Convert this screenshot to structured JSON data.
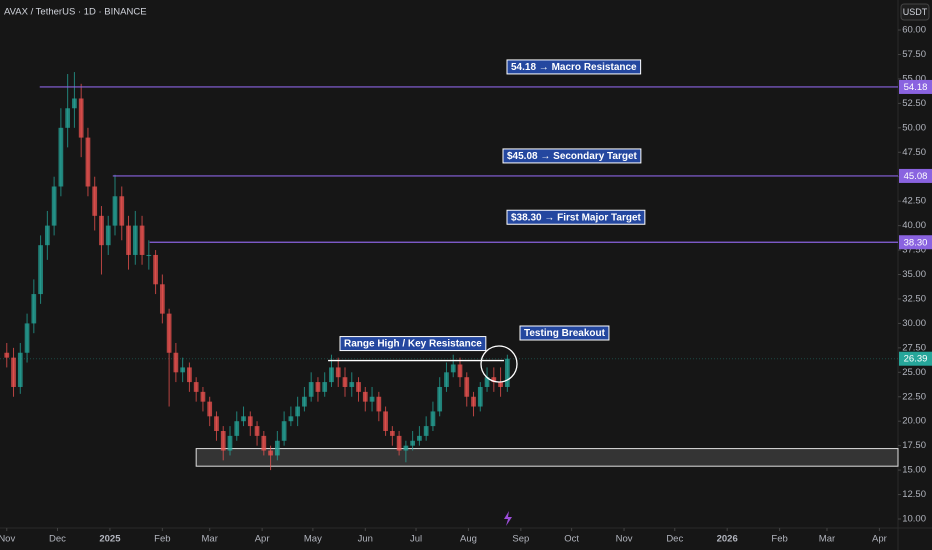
{
  "chart_data": {
    "type": "candlestick",
    "title": "AVAX / TetherUS · 1D · BINANCE",
    "quote_currency": "USDT",
    "up_color": "#26a69a",
    "down_color": "#ef5350",
    "level_color": "#8a63e0",
    "x": [
      0,
      4,
      8,
      12,
      16,
      20,
      24,
      28,
      32,
      36,
      40,
      44,
      48,
      52,
      56,
      60,
      64,
      68,
      72,
      76,
      80,
      84,
      88,
      92,
      96,
      100,
      104,
      108,
      112,
      116,
      120,
      124,
      128,
      132,
      136,
      140,
      144,
      148,
      152,
      156,
      160,
      164,
      168,
      172,
      176,
      180,
      184,
      188,
      192,
      196,
      200,
      204,
      208,
      212,
      216,
      220,
      224,
      228,
      232,
      236,
      240,
      244,
      248,
      252,
      256,
      260,
      264,
      268,
      272,
      276,
      280,
      284,
      288,
      292,
      296
    ],
    "open": [
      27,
      26.5,
      23.5,
      27,
      30,
      33,
      38,
      40,
      44,
      50,
      52,
      53,
      49,
      44,
      41,
      38,
      40,
      43,
      40,
      37,
      40,
      37,
      37,
      34,
      31,
      27,
      25,
      25.5,
      24,
      23,
      22,
      20.5,
      19,
      17,
      18.5,
      20,
      20.5,
      19.5,
      18.5,
      17,
      16.5,
      18,
      20,
      20.5,
      21.5,
      22.5,
      24,
      23,
      24,
      25.5,
      24.5,
      23.5,
      24,
      23,
      22,
      22.5,
      21,
      19,
      18.5,
      17,
      17.5,
      18,
      18.5,
      19.5,
      21,
      23.5,
      25,
      25.8,
      24.5,
      22.5,
      21.5,
      23.5,
      24.5,
      24,
      23.5
    ],
    "high": [
      28,
      27.5,
      28,
      31,
      34.5,
      39,
      41.5,
      45,
      52,
      55.5,
      55.7,
      54.5,
      50,
      45,
      42,
      41,
      45.2,
      44,
      41,
      41.5,
      41,
      38.5,
      37.5,
      35,
      31.5,
      28,
      26.5,
      26,
      24.5,
      23.5,
      22.5,
      21,
      19.5,
      19.5,
      21,
      21.5,
      21,
      20,
      19,
      17.5,
      19,
      21,
      21.5,
      22.5,
      23.5,
      25,
      24.5,
      25,
      26.8,
      26.5,
      25.5,
      25,
      24.5,
      23.5,
      23.5,
      23,
      21.5,
      19.5,
      19,
      18,
      19,
      19.5,
      20.5,
      22,
      24.5,
      26,
      26.8,
      26.5,
      25,
      23,
      24,
      25.5,
      25.5,
      25.5,
      26.8
    ],
    "low": [
      25.5,
      22.5,
      22.8,
      26,
      29,
      32,
      36.5,
      39,
      43,
      48,
      50,
      47,
      43,
      39.5,
      35,
      37,
      39,
      38.5,
      35.5,
      36,
      36,
      35.5,
      33,
      30,
      21.5,
      24,
      24,
      23,
      22,
      21,
      19.5,
      18,
      16,
      16.5,
      18,
      19.5,
      18.5,
      17.5,
      16.5,
      15,
      16,
      17.5,
      19.5,
      19.5,
      21,
      22,
      22,
      22.5,
      23.5,
      23.5,
      22.5,
      22.5,
      22,
      21,
      21,
      20,
      18.5,
      17.5,
      16.5,
      15.8,
      17,
      17.5,
      18,
      19,
      20.5,
      23,
      24.5,
      23.5,
      21.5,
      20.5,
      21,
      23,
      23,
      22.5,
      23
    ],
    "close": [
      26.5,
      23.5,
      27,
      30,
      33,
      38,
      40,
      44,
      50,
      52,
      53,
      49,
      44,
      41,
      38,
      40,
      43,
      40,
      37,
      40,
      37,
      37,
      34,
      31,
      27,
      25,
      25.5,
      24,
      23,
      22,
      20.5,
      19,
      17,
      18.5,
      20,
      20.5,
      19.5,
      18.5,
      17,
      16.5,
      18,
      20,
      20.5,
      21.5,
      22.5,
      24,
      23,
      24,
      25.5,
      24.5,
      23.5,
      24,
      23,
      22,
      22.5,
      21,
      19,
      18.5,
      17,
      17.5,
      18,
      18.5,
      19.5,
      21,
      23.5,
      25,
      25.8,
      24.5,
      22.5,
      21.5,
      23.5,
      24.5,
      24,
      23.5,
      26.39
    ],
    "last_price": 26.39,
    "xlim": [
      -4,
      527
    ],
    "ylim": [
      9.08,
      63.07
    ],
    "xticks": [
      {
        "value": 0,
        "label": "Nov"
      },
      {
        "value": 30,
        "label": "Dec"
      },
      {
        "value": 61,
        "label": "2025"
      },
      {
        "value": 92,
        "label": "Feb"
      },
      {
        "value": 120,
        "label": "Mar"
      },
      {
        "value": 151,
        "label": "Apr"
      },
      {
        "value": 181,
        "label": "May"
      },
      {
        "value": 212,
        "label": "Jun"
      },
      {
        "value": 242,
        "label": "Jul"
      },
      {
        "value": 273,
        "label": "Aug"
      },
      {
        "value": 304,
        "label": "Sep"
      },
      {
        "value": 334,
        "label": "Oct"
      },
      {
        "value": 365,
        "label": "Nov"
      },
      {
        "value": 395,
        "label": "Dec"
      },
      {
        "value": 426,
        "label": "2026"
      },
      {
        "value": 457,
        "label": "Feb"
      },
      {
        "value": 485,
        "label": "Mar"
      },
      {
        "value": 516,
        "label": "Apr"
      }
    ],
    "yticks": [
      {
        "value": 10,
        "label": "10.00"
      },
      {
        "value": 12.5,
        "label": "12.50"
      },
      {
        "value": 15,
        "label": "15.00"
      },
      {
        "value": 17.5,
        "label": "17.50"
      },
      {
        "value": 20,
        "label": "20.00"
      },
      {
        "value": 22.5,
        "label": "22.50"
      },
      {
        "value": 25,
        "label": "25.00"
      },
      {
        "value": 27.5,
        "label": "27.50"
      },
      {
        "value": 30,
        "label": "30.00"
      },
      {
        "value": 32.5,
        "label": "32.50"
      },
      {
        "value": 35,
        "label": "35.00"
      },
      {
        "value": 37.5,
        "label": "37.50"
      },
      {
        "value": 40,
        "label": "40.00"
      },
      {
        "value": 42.5,
        "label": "42.50"
      },
      {
        "value": 45,
        "label": "45.00"
      },
      {
        "value": 47.5,
        "label": "47.50"
      },
      {
        "value": 50,
        "label": "50.00"
      },
      {
        "value": 52.5,
        "label": "52.50"
      },
      {
        "value": 55,
        "label": "55.00"
      },
      {
        "value": 57.5,
        "label": "57.50"
      },
      {
        "value": 60,
        "label": "60.00"
      }
    ],
    "grid": false,
    "levels": [
      {
        "price": 54.18,
        "text": "54.18 → Macro Resistance"
      },
      {
        "price": 45.08,
        "text": "$45.08 → Secondary Target"
      },
      {
        "price": {
          "value": 38.3,
          "label": "38.30"
        },
        "text": "$38.30 → First Major Target"
      }
    ],
    "range_high": {
      "value": 26.2,
      "text": "Range High / Key Resistance"
    },
    "breakout_note": "Testing Breakout",
    "support_zone": [
      15.4,
      17.2
    ]
  }
}
